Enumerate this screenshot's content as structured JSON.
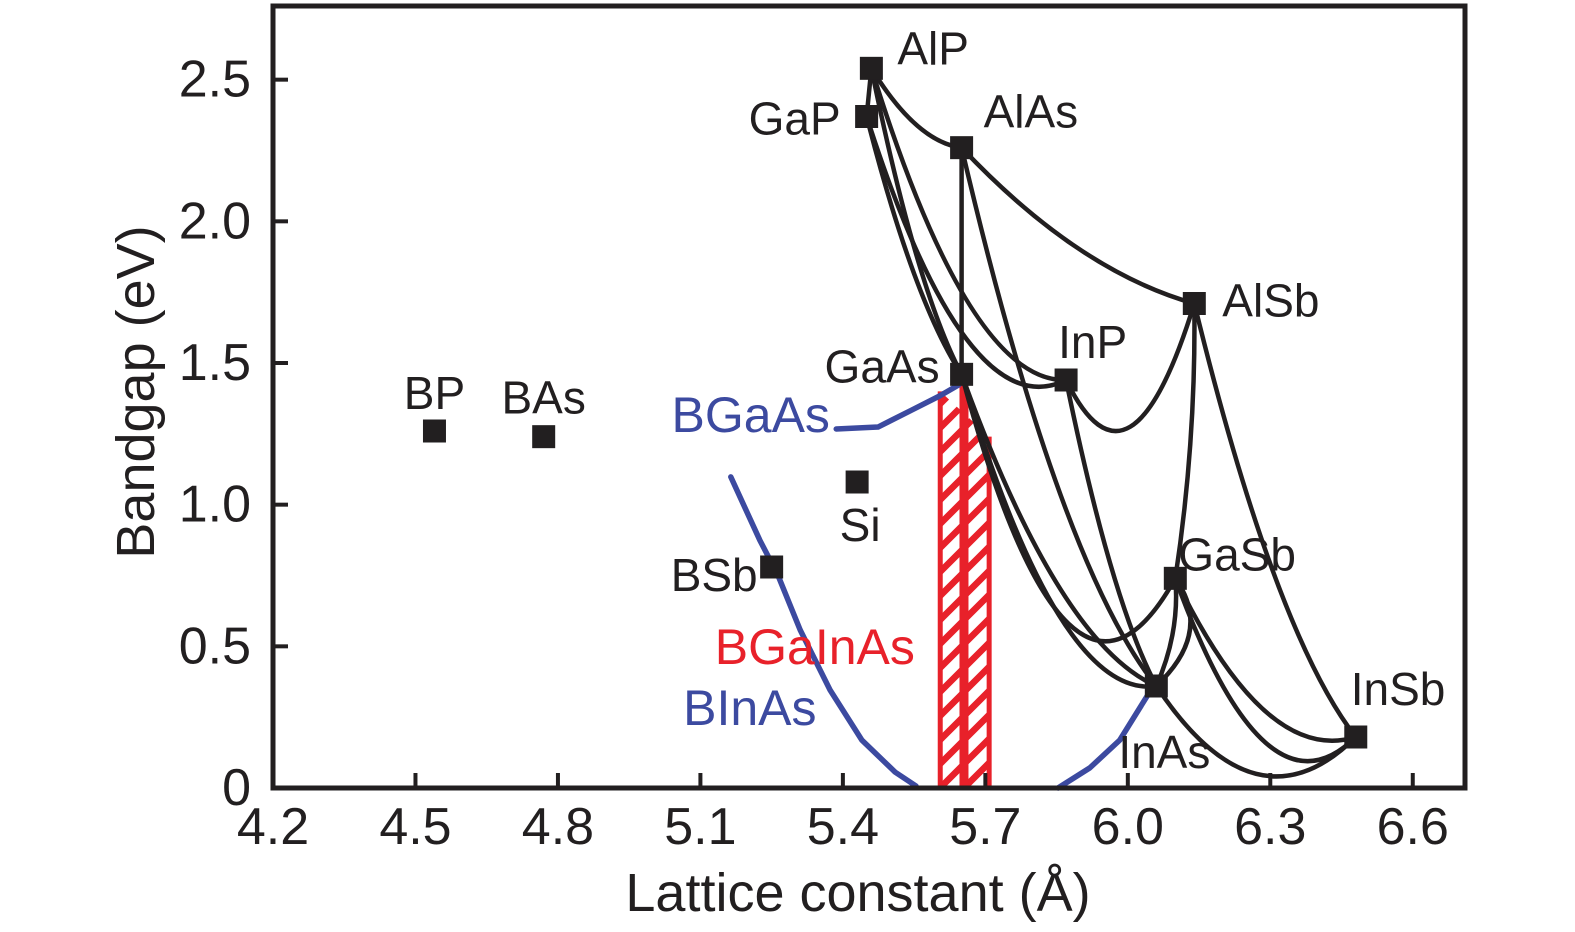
{
  "figure": {
    "background": "#ffffff",
    "colors": {
      "black": "#221f20",
      "blue": "#3c4aa0",
      "red": "#e8212a"
    }
  },
  "chart_data": {
    "type": "scatter",
    "title": "",
    "xlabel": "Lattice constant (Å)",
    "ylabel": "Bandgap (eV)",
    "xlim": [
      4.2,
      6.71
    ],
    "ylim": [
      0,
      2.76
    ],
    "grid": false,
    "legend": "none",
    "x_ticks": [
      4.2,
      4.5,
      4.8,
      5.1,
      5.4,
      5.7,
      6.0,
      6.3,
      6.6
    ],
    "x_tick_labels": [
      "4.2",
      "4.5",
      "4.8",
      "5.1",
      "5.4",
      "5.7",
      "6.0",
      "6.3",
      "6.6"
    ],
    "y_ticks": [
      0,
      0.5,
      1.0,
      1.5,
      2.0,
      2.5
    ],
    "y_tick_labels": [
      "0",
      "0.5",
      "1.0",
      "1.5",
      "2.0",
      "2.5"
    ],
    "points": [
      {
        "label": "AlP",
        "x": 5.46,
        "y": 2.54
      },
      {
        "label": "GaP",
        "x": 5.45,
        "y": 2.37
      },
      {
        "label": "AlAs",
        "x": 5.65,
        "y": 2.26
      },
      {
        "label": "GaAs",
        "x": 5.65,
        "y": 1.46
      },
      {
        "label": "InP",
        "x": 5.87,
        "y": 1.44
      },
      {
        "label": "AlSb",
        "x": 6.14,
        "y": 1.71
      },
      {
        "label": "GaSb",
        "x": 6.1,
        "y": 0.74
      },
      {
        "label": "InAs",
        "x": 6.06,
        "y": 0.36
      },
      {
        "label": "InSb",
        "x": 6.48,
        "y": 0.18
      },
      {
        "label": "BP",
        "x": 4.54,
        "y": 1.26
      },
      {
        "label": "BAs",
        "x": 4.77,
        "y": 1.24
      },
      {
        "label": "Si",
        "x": 5.43,
        "y": 1.08
      },
      {
        "label": "BSb",
        "x": 5.25,
        "y": 0.78
      }
    ],
    "alloy_curves": [
      {
        "from": "AlP",
        "to": "GaP",
        "bow": 0
      },
      {
        "from": "AlP",
        "to": "AlAs",
        "bow": 0.06
      },
      {
        "from": "AlP",
        "to": "GaAs",
        "bow": 0.12
      },
      {
        "from": "AlP",
        "to": "InP",
        "bow": 0.28
      },
      {
        "from": "GaP",
        "to": "GaAs",
        "bow": 0.1
      },
      {
        "from": "GaP",
        "to": "InP",
        "bow": 0.32
      },
      {
        "from": "AlAs",
        "to": "GaAs",
        "bow": 0
      },
      {
        "from": "AlAs",
        "to": "AlSb",
        "bow": 0.08
      },
      {
        "from": "AlAs",
        "to": "InAs",
        "bow": 0.26
      },
      {
        "from": "GaAs",
        "to": "InAs",
        "bow": 0.3
      },
      {
        "from": "GaAs",
        "to": "InAs",
        "bow": 0.2
      },
      {
        "from": "GaAs",
        "to": "GaSb",
        "bow": 0.52
      },
      {
        "from": "InP",
        "to": "InAs",
        "bow": 0.12
      },
      {
        "from": "InP",
        "to": "AlSb",
        "bow": 0.3
      },
      {
        "from": "AlSb",
        "to": "GaSb",
        "bow": 0,
        "xbow": 0.012
      },
      {
        "from": "AlSb",
        "to": "InSb",
        "bow": 0.2
      },
      {
        "from": "GaSb",
        "to": "InSb",
        "bow": 0.3
      },
      {
        "from": "GaSb",
        "to": "InSb",
        "bow": 0.19
      },
      {
        "from": "InAs",
        "to": "InSb",
        "bow": 0.22
      },
      {
        "from": "InAs",
        "to": "GaSb",
        "bow": 0,
        "xbow": 0.05
      },
      {
        "from": "InAs",
        "to": "GaSb",
        "bow": 0,
        "xbow": 0.015
      }
    ],
    "b_alloy_curves": [
      {
        "name": "BGaAs",
        "color": "#3c4aa0",
        "segments": [
          [
            [
              5.386,
              1.267
            ],
            [
              5.474,
              1.274
            ],
            [
              5.545,
              1.334
            ],
            [
              5.604,
              1.384
            ],
            [
              5.644,
              1.423
            ]
          ]
        ]
      },
      {
        "name": "BInAs",
        "color": "#3c4aa0",
        "segments": [
          [
            [
              5.164,
              1.098
            ],
            [
              5.225,
              0.875
            ],
            [
              5.263,
              0.752
            ],
            [
              5.31,
              0.558
            ],
            [
              5.373,
              0.346
            ],
            [
              5.44,
              0.169
            ],
            [
              5.51,
              0.056
            ],
            [
              5.554,
              0.007
            ]
          ],
          [
            [
              5.853,
              0.0
            ],
            [
              5.92,
              0.071
            ],
            [
              5.983,
              0.169
            ],
            [
              6.042,
              0.328
            ],
            [
              6.057,
              0.353
            ]
          ]
        ]
      }
    ],
    "highlight_region": {
      "name": "BGaInAs",
      "color": "#e8212a",
      "x_range": [
        5.605,
        5.708
      ],
      "x_mid": 5.655,
      "top_E_left": 1.4,
      "top_E_right": 1.24,
      "bottom_E": 0
    },
    "annotations": [
      {
        "text": "BGaAs",
        "color": "#3c4aa0",
        "x": 5.206,
        "y": 1.317
      },
      {
        "text": "BGaInAs",
        "color": "#e8212a",
        "x": 5.341,
        "y": 0.498
      },
      {
        "text": "BInAs",
        "color": "#3c4aa0",
        "x": 5.204,
        "y": 0.282
      }
    ]
  }
}
